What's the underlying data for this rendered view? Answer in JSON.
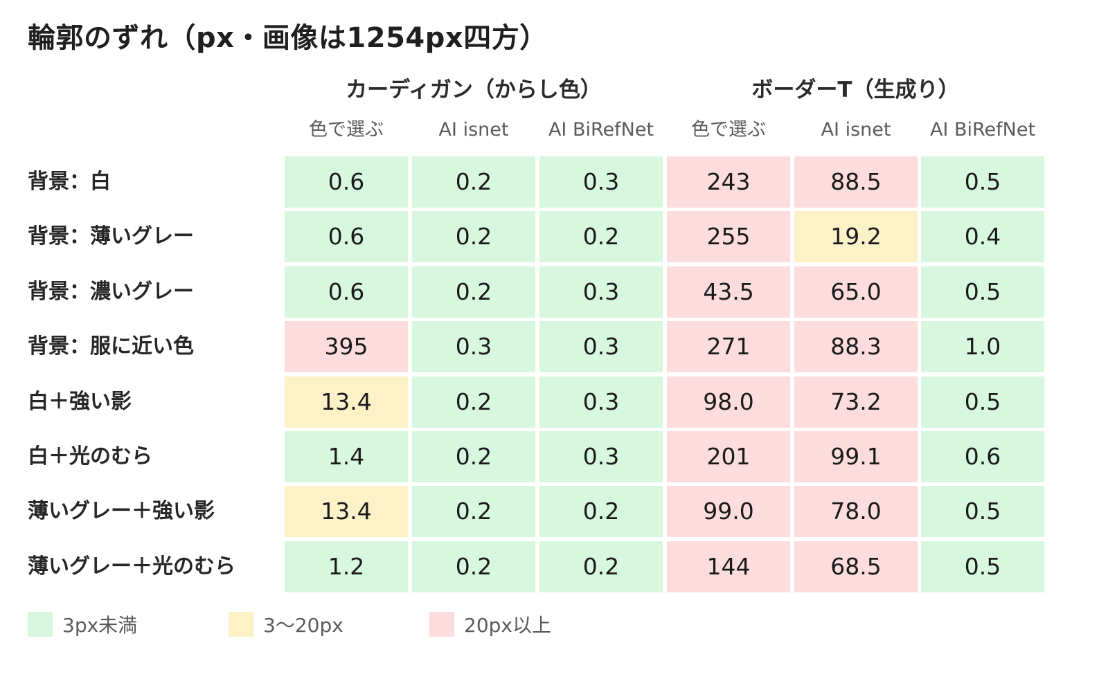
{
  "title": "輪郭のずれ（px・画像は1254px四方）",
  "colors": {
    "green": "#d8f7df",
    "yellow": "#fcf1c7",
    "red": "#fcdcdc"
  },
  "chart_data": {
    "type": "table",
    "title": "輪郭のずれ（px・画像は1254px四方）",
    "groups": [
      {
        "name": "カーディガン（からし色）",
        "columns": [
          "色で選ぶ",
          "AI isnet",
          "AI BiRefNet"
        ]
      },
      {
        "name": "ボーダーT（生成り）",
        "columns": [
          "色で選ぶ",
          "AI isnet",
          "AI BiRefNet"
        ]
      }
    ],
    "rows": [
      {
        "label": "背景：白",
        "values": [
          "0.6",
          "0.2",
          "0.3",
          "243",
          "88.5",
          "0.5"
        ],
        "levels": [
          "green",
          "green",
          "green",
          "red",
          "red",
          "green"
        ]
      },
      {
        "label": "背景：薄いグレー",
        "values": [
          "0.6",
          "0.2",
          "0.2",
          "255",
          "19.2",
          "0.4"
        ],
        "levels": [
          "green",
          "green",
          "green",
          "red",
          "yellow",
          "green"
        ]
      },
      {
        "label": "背景：濃いグレー",
        "values": [
          "0.6",
          "0.2",
          "0.3",
          "43.5",
          "65.0",
          "0.5"
        ],
        "levels": [
          "green",
          "green",
          "green",
          "red",
          "red",
          "green"
        ]
      },
      {
        "label": "背景：服に近い色",
        "values": [
          "395",
          "0.3",
          "0.3",
          "271",
          "88.3",
          "1.0"
        ],
        "levels": [
          "red",
          "green",
          "green",
          "red",
          "red",
          "green"
        ]
      },
      {
        "label": "白＋強い影",
        "values": [
          "13.4",
          "0.2",
          "0.3",
          "98.0",
          "73.2",
          "0.5"
        ],
        "levels": [
          "yellow",
          "green",
          "green",
          "red",
          "red",
          "green"
        ]
      },
      {
        "label": "白＋光のむら",
        "values": [
          "1.4",
          "0.2",
          "0.3",
          "201",
          "99.1",
          "0.6"
        ],
        "levels": [
          "green",
          "green",
          "green",
          "red",
          "red",
          "green"
        ]
      },
      {
        "label": "薄いグレー＋強い影",
        "values": [
          "13.4",
          "0.2",
          "0.2",
          "99.0",
          "78.0",
          "0.5"
        ],
        "levels": [
          "yellow",
          "green",
          "green",
          "red",
          "red",
          "green"
        ]
      },
      {
        "label": "薄いグレー＋光のむら",
        "values": [
          "1.2",
          "0.2",
          "0.2",
          "144",
          "68.5",
          "0.5"
        ],
        "levels": [
          "green",
          "green",
          "green",
          "red",
          "red",
          "green"
        ]
      }
    ],
    "legend": [
      {
        "label": "3px未満",
        "level": "green"
      },
      {
        "label": "3〜20px",
        "level": "yellow"
      },
      {
        "label": "20px以上",
        "level": "red"
      }
    ]
  }
}
